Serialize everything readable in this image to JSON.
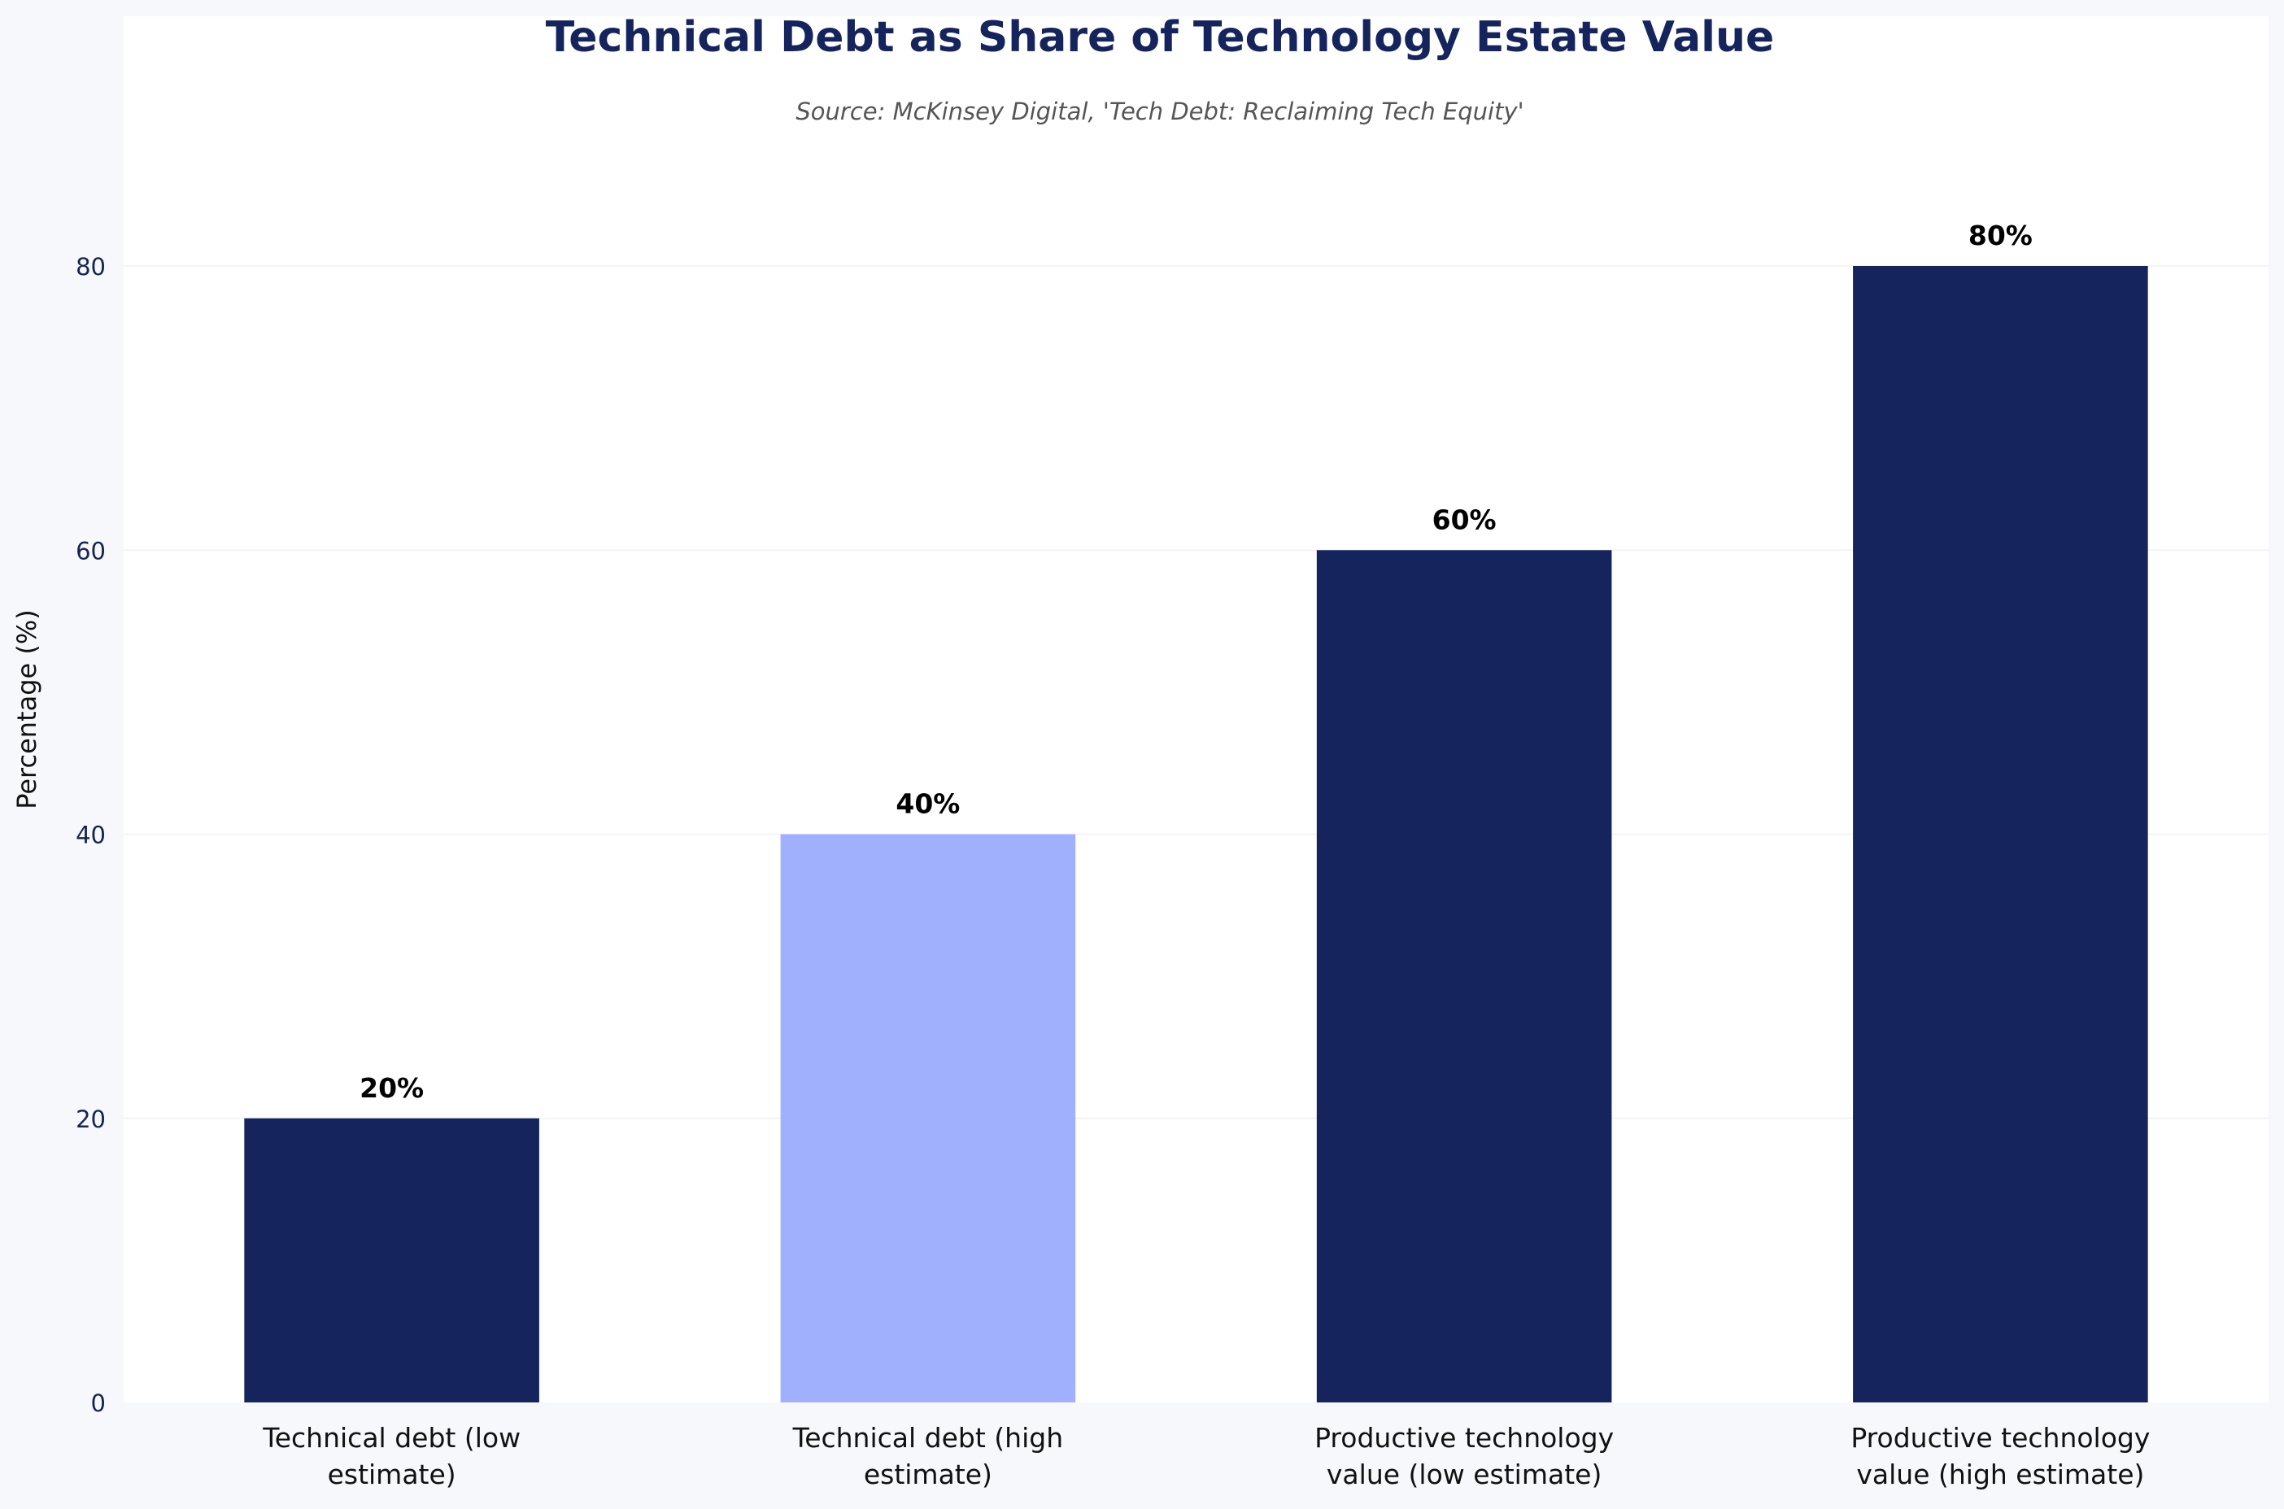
{
  "chart_data": {
    "type": "bar",
    "title": "Technical Debt as Share of Technology Estate Value",
    "subtitle": "Source: McKinsey Digital, 'Tech Debt: Reclaiming Tech Equity'",
    "xlabel": "",
    "ylabel": "Percentage (%)",
    "categories": [
      [
        "Technical debt (low",
        "estimate)"
      ],
      [
        "Technical debt (high",
        "estimate)"
      ],
      [
        "Productive technology",
        "value (low estimate)"
      ],
      [
        "Productive technology",
        "value (high estimate)"
      ]
    ],
    "values": [
      20,
      40,
      60,
      80
    ],
    "value_labels": [
      "20%",
      "40%",
      "60%",
      "80%"
    ],
    "bar_colors": [
      "#15245c",
      "#a0b0fc",
      "#15245c",
      "#15245c"
    ],
    "yticks": [
      0,
      20,
      40,
      60,
      80
    ],
    "ylim": [
      0,
      80
    ],
    "grid": true,
    "legend": "none"
  },
  "colors": {
    "title": "#15245c",
    "plot_background": "#ffffff",
    "figure_background": "#f7f8fc",
    "grid": "#f4f4f8"
  }
}
